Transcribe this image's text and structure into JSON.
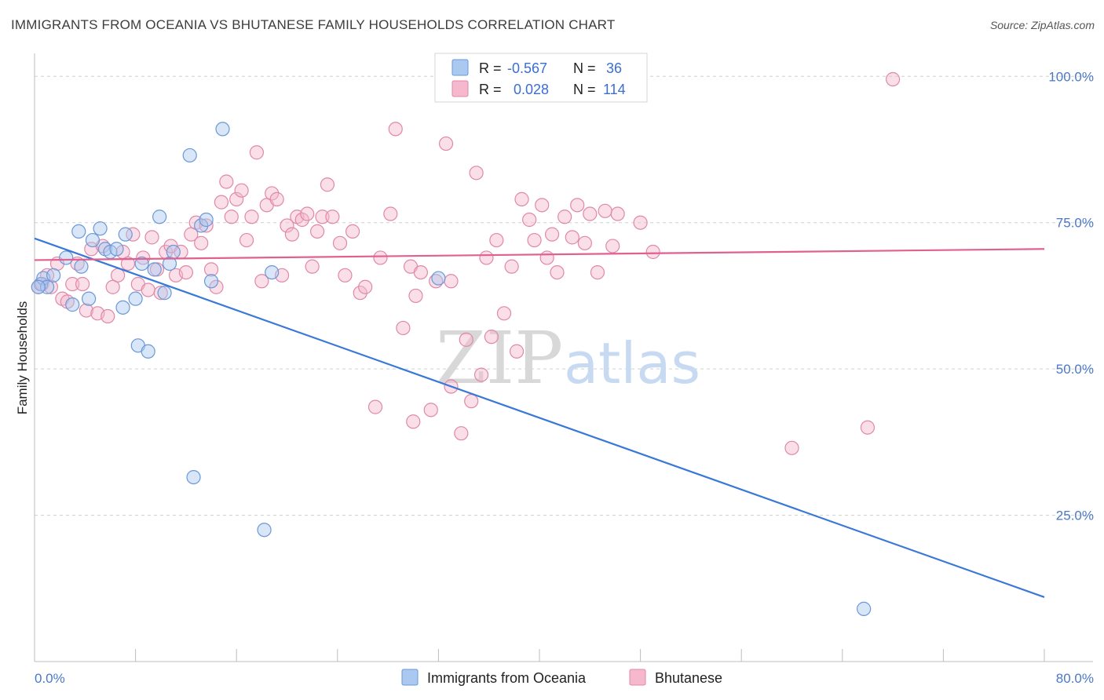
{
  "title": "IMMIGRANTS FROM OCEANIA VS BHUTANESE FAMILY HOUSEHOLDS CORRELATION CHART",
  "source": "Source: ZipAtlas.com",
  "colors": {
    "blue": "#3a78d8",
    "blue_fill": "#aac8f0",
    "pink": "#e06090",
    "pink_fill": "#f5b8cc",
    "grid": "#d0d0d0",
    "tick_text": "#4a78c8"
  },
  "legend": {
    "rows": [
      {
        "r_label": "R =",
        "r_value": "-0.567",
        "n_label": "N =",
        "n_value": "36"
      },
      {
        "r_label": "R =",
        "r_value": "0.028",
        "n_label": "N =",
        "n_value": "114"
      }
    ]
  },
  "chart_data": {
    "type": "scatter",
    "xlabel": "",
    "ylabel": "Family Households",
    "xlim": [
      0,
      80
    ],
    "ylim": [
      0,
      105
    ],
    "x_tick_labels": [
      "0.0%",
      "80.0%"
    ],
    "y_ticks": [
      25,
      50,
      75,
      100
    ],
    "y_tick_labels": [
      "25.0%",
      "50.0%",
      "75.0%",
      "100.0%"
    ],
    "grid": true,
    "legend_position": "bottom",
    "watermark": {
      "zip": "ZIP",
      "atlas": "atlas"
    },
    "series": [
      {
        "name": "Immigrants from Oceania",
        "color": "#3a78d8",
        "trend": {
          "x": [
            0,
            80
          ],
          "y": [
            72.3,
            11.0
          ]
        },
        "points": [
          [
            0.5,
            64.5
          ],
          [
            0.7,
            65.5
          ],
          [
            1.0,
            64.0
          ],
          [
            1.5,
            66.0
          ],
          [
            2.5,
            69.0
          ],
          [
            3.0,
            61.0
          ],
          [
            3.5,
            73.5
          ],
          [
            3.7,
            67.5
          ],
          [
            4.3,
            62.0
          ],
          [
            4.6,
            72.0
          ],
          [
            5.2,
            74.0
          ],
          [
            5.6,
            70.5
          ],
          [
            6.0,
            70.0
          ],
          [
            6.5,
            70.5
          ],
          [
            7.0,
            60.5
          ],
          [
            7.2,
            73.0
          ],
          [
            8.0,
            62.0
          ],
          [
            8.2,
            54.0
          ],
          [
            8.5,
            68.0
          ],
          [
            9.0,
            53.0
          ],
          [
            9.5,
            67.0
          ],
          [
            9.9,
            76.0
          ],
          [
            10.3,
            63.0
          ],
          [
            10.7,
            68.0
          ],
          [
            11.0,
            70.0
          ],
          [
            12.3,
            86.5
          ],
          [
            12.6,
            31.5
          ],
          [
            13.2,
            74.5
          ],
          [
            13.6,
            75.5
          ],
          [
            14.0,
            65.0
          ],
          [
            14.9,
            91.0
          ],
          [
            18.2,
            22.5
          ],
          [
            18.8,
            66.5
          ],
          [
            32.0,
            65.5
          ],
          [
            65.7,
            9.0
          ],
          [
            0.3,
            64.0
          ]
        ]
      },
      {
        "name": "Bhutanese",
        "color": "#e06090",
        "trend": {
          "x": [
            0,
            80
          ],
          "y": [
            68.6,
            70.5
          ]
        },
        "points": [
          [
            0.3,
            64.0
          ],
          [
            0.6,
            64.5
          ],
          [
            1.0,
            66.0
          ],
          [
            1.3,
            64.0
          ],
          [
            1.8,
            68.0
          ],
          [
            2.2,
            62.0
          ],
          [
            2.6,
            61.5
          ],
          [
            3.0,
            64.5
          ],
          [
            3.4,
            68.0
          ],
          [
            3.8,
            64.5
          ],
          [
            4.1,
            60.0
          ],
          [
            4.5,
            70.5
          ],
          [
            5.0,
            59.5
          ],
          [
            5.4,
            71.0
          ],
          [
            5.8,
            59.0
          ],
          [
            6.2,
            64.0
          ],
          [
            6.6,
            66.0
          ],
          [
            7.0,
            70.0
          ],
          [
            7.4,
            68.0
          ],
          [
            7.8,
            73.0
          ],
          [
            8.2,
            64.5
          ],
          [
            8.6,
            69.0
          ],
          [
            9.0,
            63.5
          ],
          [
            9.3,
            72.5
          ],
          [
            9.7,
            67.0
          ],
          [
            10.0,
            63.0
          ],
          [
            10.4,
            70.0
          ],
          [
            10.8,
            71.0
          ],
          [
            11.2,
            66.0
          ],
          [
            11.6,
            70.0
          ],
          [
            12.0,
            66.5
          ],
          [
            12.4,
            73.0
          ],
          [
            12.8,
            75.0
          ],
          [
            13.2,
            71.5
          ],
          [
            13.6,
            74.5
          ],
          [
            14.0,
            67.0
          ],
          [
            14.4,
            64.0
          ],
          [
            14.8,
            78.5
          ],
          [
            15.2,
            82.0
          ],
          [
            15.6,
            76.0
          ],
          [
            16.0,
            79.0
          ],
          [
            16.4,
            80.5
          ],
          [
            16.8,
            72.0
          ],
          [
            17.2,
            76.0
          ],
          [
            17.6,
            87.0
          ],
          [
            18.0,
            65.0
          ],
          [
            18.4,
            78.0
          ],
          [
            18.8,
            80.0
          ],
          [
            19.2,
            79.0
          ],
          [
            19.6,
            66.0
          ],
          [
            20.0,
            74.5
          ],
          [
            20.4,
            73.0
          ],
          [
            20.8,
            76.0
          ],
          [
            21.2,
            75.5
          ],
          [
            21.6,
            76.5
          ],
          [
            22.0,
            67.5
          ],
          [
            22.4,
            73.5
          ],
          [
            22.8,
            76.0
          ],
          [
            23.2,
            81.5
          ],
          [
            23.6,
            76.0
          ],
          [
            24.2,
            71.5
          ],
          [
            24.6,
            66.0
          ],
          [
            25.2,
            73.5
          ],
          [
            25.8,
            63.0
          ],
          [
            26.2,
            64.0
          ],
          [
            27.0,
            43.5
          ],
          [
            27.4,
            69.0
          ],
          [
            28.2,
            76.5
          ],
          [
            28.6,
            91.0
          ],
          [
            29.2,
            57.0
          ],
          [
            29.8,
            67.5
          ],
          [
            30.2,
            62.5
          ],
          [
            30.6,
            66.5
          ],
          [
            31.4,
            43.0
          ],
          [
            31.8,
            65.0
          ],
          [
            32.6,
            88.5
          ],
          [
            33.0,
            65.0
          ],
          [
            33.8,
            39.0
          ],
          [
            34.2,
            55.0
          ],
          [
            34.6,
            44.5
          ],
          [
            35.0,
            83.5
          ],
          [
            35.4,
            49.0
          ],
          [
            35.8,
            69.0
          ],
          [
            36.2,
            55.5
          ],
          [
            36.6,
            72.0
          ],
          [
            37.2,
            59.5
          ],
          [
            37.8,
            67.5
          ],
          [
            38.2,
            53.0
          ],
          [
            38.6,
            79.0
          ],
          [
            39.2,
            75.5
          ],
          [
            39.6,
            72.0
          ],
          [
            40.2,
            78.0
          ],
          [
            40.6,
            69.0
          ],
          [
            41.0,
            73.0
          ],
          [
            41.4,
            66.5
          ],
          [
            42.0,
            76.0
          ],
          [
            42.6,
            72.5
          ],
          [
            43.0,
            78.0
          ],
          [
            43.6,
            71.5
          ],
          [
            44.0,
            76.5
          ],
          [
            44.6,
            66.5
          ],
          [
            45.2,
            77.0
          ],
          [
            45.8,
            71.0
          ],
          [
            46.2,
            76.5
          ],
          [
            34.0,
            99.0
          ],
          [
            46.0,
            99.0
          ],
          [
            68.0,
            99.5
          ],
          [
            37.0,
            98.5
          ],
          [
            66.0,
            40.0
          ],
          [
            60.0,
            36.5
          ],
          [
            33.0,
            47.0
          ],
          [
            30.0,
            41.0
          ],
          [
            48.0,
            75.0
          ],
          [
            49.0,
            70.0
          ]
        ]
      }
    ]
  }
}
